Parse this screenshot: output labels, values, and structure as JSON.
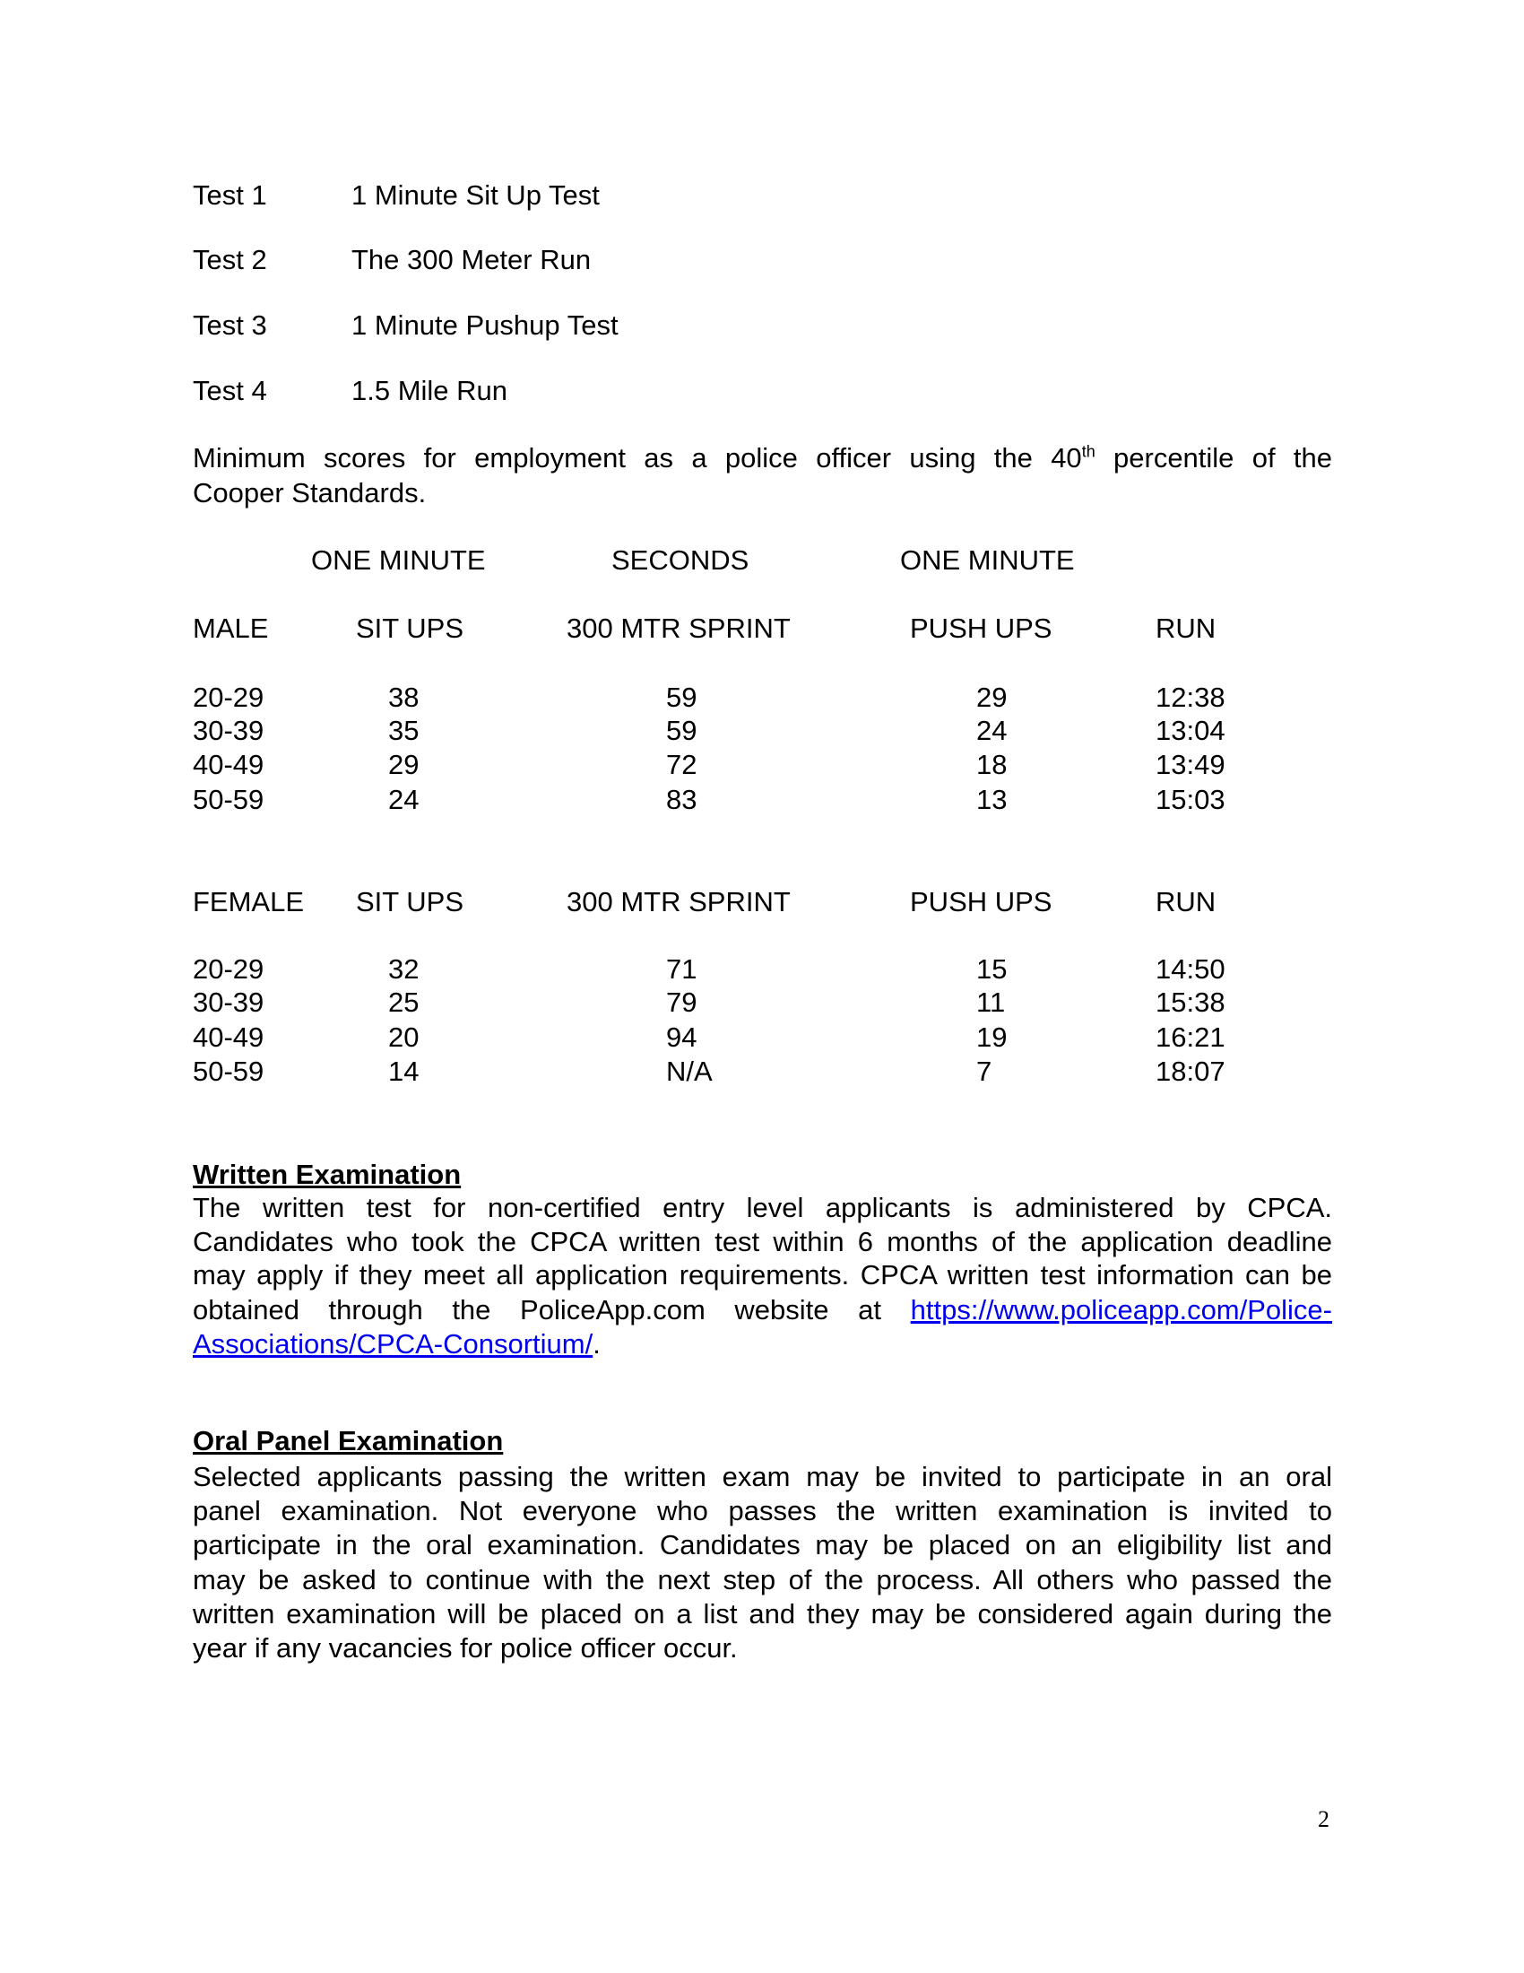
{
  "tests": [
    {
      "label": "Test 1",
      "name": "1 Minute Sit Up Test"
    },
    {
      "label": "Test 2",
      "name": "The 300 Meter Run"
    },
    {
      "label": "Test 3",
      "name": "1 Minute Pushup Test"
    },
    {
      "label": "Test 4",
      "name": "1.5 Mile Run"
    }
  ],
  "intro": {
    "part1": "Minimum scores for employment as a police officer using the 40",
    "sup": "th",
    "part2": " percentile of the",
    "line2": "Cooper Standards."
  },
  "table": {
    "header_top": [
      "ONE MINUTE",
      "SECONDS",
      "ONE MINUTE"
    ],
    "male": {
      "headers": [
        "MALE",
        "SIT UPS",
        "300 MTR SPRINT",
        "PUSH UPS",
        "RUN"
      ],
      "rows": [
        [
          "20-29",
          "38",
          "59",
          "29",
          "12:38"
        ],
        [
          "30-39",
          "35",
          "59",
          "24",
          "13:04"
        ],
        [
          "40-49",
          "29",
          "72",
          "18",
          "13:49"
        ],
        [
          "50-59",
          "24",
          "83",
          "13",
          "15:03"
        ]
      ]
    },
    "female": {
      "headers": [
        "FEMALE",
        "SIT UPS",
        "300 MTR SPRINT",
        "PUSH UPS",
        "RUN"
      ],
      "rows": [
        [
          "20-29",
          "32",
          "71",
          "15",
          "14:50"
        ],
        [
          "30-39",
          "25",
          "79",
          "11",
          "15:38"
        ],
        [
          "40-49",
          "20",
          "94",
          "19",
          "16:21"
        ],
        [
          "50-59",
          "14",
          "N/A",
          "7",
          "18:07"
        ]
      ]
    }
  },
  "written": {
    "heading": "Written Examination",
    "lines": [
      "The written test for non-certified entry level applicants is administered by CPCA.",
      "Candidates who took the CPCA written test within 6 months of the application deadline",
      "may apply if they meet all application requirements.  CPCA written test information can be"
    ],
    "line4_text": "obtained through the PoliceApp.com website at",
    "link_part1": "https://www.policeapp.com/Police-",
    "link_part2": "Associations/CPCA-Consortium/",
    "end": "."
  },
  "oral": {
    "heading": "Oral Panel Examination",
    "lines": [
      "Selected applicants passing the written exam may be invited to participate in an oral",
      "panel examination.  Not everyone who passes the written examination is invited to",
      "participate in the oral examination.  Candidates may be placed on an eligibility list and",
      "may be asked to continue with the next step of the process.  All others who passed the",
      "written examination will be placed on a list and they may be considered again during the",
      "year if any vacancies for police officer occur."
    ]
  },
  "page_number": "2",
  "colors": {
    "link": "#0000ee",
    "text": "#000000"
  }
}
